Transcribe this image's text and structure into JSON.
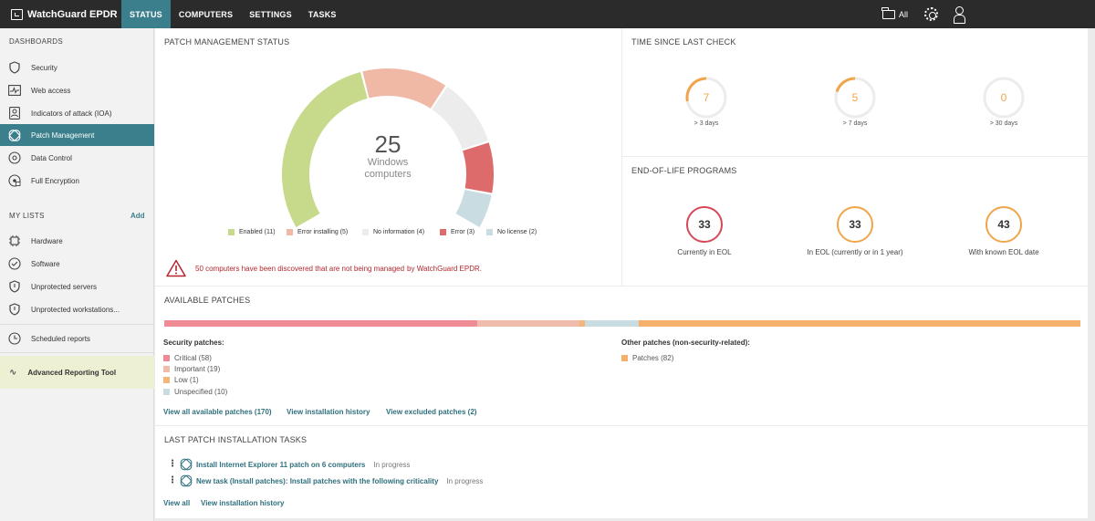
{
  "app": {
    "title": "WatchGuard EPDR"
  },
  "nav": [
    {
      "label": "STATUS",
      "active": true
    },
    {
      "label": "COMPUTERS"
    },
    {
      "label": "SETTINGS"
    },
    {
      "label": "TASKS"
    }
  ],
  "topbar": {
    "filter_label": "All"
  },
  "sidebar": {
    "dashboards_heading": "DASHBOARDS",
    "dashboards": [
      {
        "label": "Security",
        "icon": "shield-icon"
      },
      {
        "label": "Web access",
        "icon": "pulse-icon"
      },
      {
        "label": "Indicators of attack (IOA)",
        "icon": "person-badge-icon"
      },
      {
        "label": "Patch Management",
        "icon": "patch-icon",
        "active": true
      },
      {
        "label": "Data Control",
        "icon": "disc-icon"
      },
      {
        "label": "Full Encryption",
        "icon": "lock-disc-icon"
      }
    ],
    "lists_heading": "MY LISTS",
    "add_label": "Add",
    "lists": [
      {
        "label": "Hardware",
        "icon": "chip-icon"
      },
      {
        "label": "Software",
        "icon": "software-icon"
      },
      {
        "label": "Unprotected servers",
        "icon": "shield-icon"
      },
      {
        "label": "Unprotected workstations...",
        "icon": "shield-icon"
      }
    ],
    "scheduled_reports": "Scheduled reports",
    "advanced_reporting": "Advanced Reporting Tool"
  },
  "patch_status": {
    "title": "PATCH MANAGEMENT STATUS",
    "total": "25",
    "total_label_1": "Windows",
    "total_label_2": "computers",
    "segments": [
      {
        "label": "Enabled (11)",
        "value": 11,
        "color": "#c7d98a"
      },
      {
        "label": "Error installing (5)",
        "value": 5,
        "color": "#efb9a6"
      },
      {
        "label": "No information (4)",
        "value": 4,
        "color": "#ececec"
      },
      {
        "label": "Error (3)",
        "value": 3,
        "color": "#de6b6b"
      },
      {
        "label": "No license (2)",
        "value": 2,
        "color": "#c9dce1"
      }
    ],
    "warning_message": "50 computers have been discovered that are not being managed",
    "warning_link": "by WatchGuard EPDR."
  },
  "time_since_last_check": {
    "title": "TIME SINCE LAST CHECK",
    "items": [
      {
        "value": "7",
        "caption": "> 3 days",
        "fraction": 0.28
      },
      {
        "value": "5",
        "caption": "> 7 days",
        "fraction": 0.2
      },
      {
        "value": "0",
        "caption": "> 30 days",
        "fraction": 0
      }
    ]
  },
  "eol": {
    "title": "END-OF-LIFE PROGRAMS",
    "items": [
      {
        "value": "33",
        "caption": "Currently in EOL",
        "color": "#d6485a"
      },
      {
        "value": "33",
        "caption": "In EOL (currently or in 1 year)",
        "color": "#f0a54a"
      },
      {
        "value": "43",
        "caption": "With known EOL date",
        "color": "#f0a54a"
      }
    ]
  },
  "available_patches": {
    "title": "AVAILABLE PATCHES",
    "bar": [
      {
        "value": 58,
        "color": "#ef8b94"
      },
      {
        "value": 19,
        "color": "#efbcac"
      },
      {
        "value": 1,
        "color": "#f3b67a"
      },
      {
        "value": 10,
        "color": "#c9dce1"
      },
      {
        "value": 82,
        "color": "#f5b06b"
      }
    ],
    "security_heading": "Security patches:",
    "security": [
      {
        "label": "Critical (58)",
        "color": "#ef8b94"
      },
      {
        "label": "Important (19)",
        "color": "#efbcac"
      },
      {
        "label": "Low (1)",
        "color": "#f3b67a"
      },
      {
        "label": "Unspecified (10)",
        "color": "#c9dce1"
      }
    ],
    "other_heading": "Other patches (non-security-related):",
    "other": [
      {
        "label": "Patches (82)",
        "color": "#f5b06b"
      }
    ],
    "links": {
      "view_all": "View all available patches (170)",
      "history": "View installation history",
      "excluded": "View excluded patches (2)"
    }
  },
  "tasks": {
    "title": "LAST PATCH INSTALLATION TASKS",
    "items": [
      {
        "name": "Install Internet Explorer 11 patch on 6 computers",
        "status": "In progress"
      },
      {
        "name": "New task (Install patches): Install patches with the following criticality",
        "status": "In progress"
      }
    ],
    "links": {
      "view_all": "View all",
      "history": "View installation history"
    }
  }
}
